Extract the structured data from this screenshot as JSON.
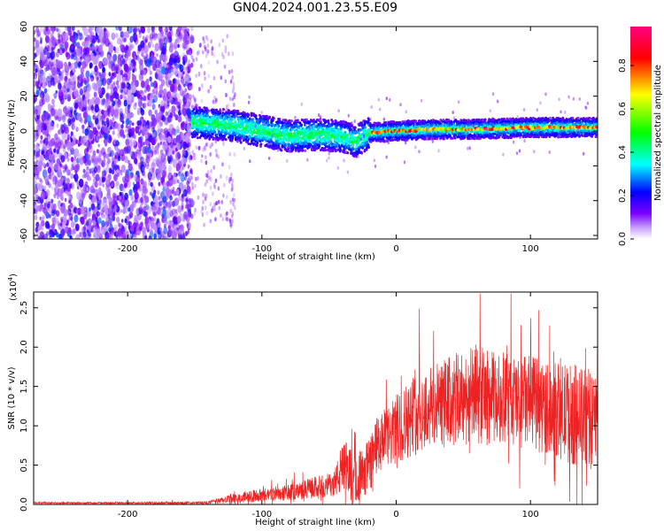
{
  "page": {
    "title": "GN04.2024.001.23.55.E09"
  },
  "chart_data": [
    {
      "type": "heatmap",
      "title": "GN04.2024.001.23.55.E09",
      "xlabel": "Height of straight line (km)",
      "ylabel": "Frequency (Hz)",
      "xlim": [
        -270,
        150
      ],
      "ylim": [
        -62,
        60
      ],
      "x_ticks": [
        -200,
        -100,
        0,
        100
      ],
      "y_ticks": [
        -60,
        -40,
        -20,
        0,
        20,
        40,
        60
      ],
      "y_tick_labels": [
        "-60",
        "-40",
        "-20",
        "0",
        "20",
        "40",
        "60"
      ],
      "x_tick_labels": [
        "-200",
        "-100",
        "0",
        "100"
      ],
      "colorbar": {
        "label": "Normalized spectral amplitude",
        "range": [
          0,
          0.98
        ],
        "ticks": [
          0.0,
          0.2,
          0.4,
          0.6,
          0.8
        ],
        "tick_labels": [
          "0.0",
          "0.2",
          "0.4",
          "0.6",
          "0.8"
        ],
        "colors": [
          "#ffffff",
          "#7b00ff",
          "#0000ff",
          "#00ffff",
          "#00ff00",
          "#ffff00",
          "#ff0000",
          "#ff0080"
        ]
      },
      "regions": [
        {
          "name": "broadband noise",
          "x_range": [
            -270,
            -152
          ],
          "freq_range": [
            -62,
            60
          ],
          "amplitude": [
            0.05,
            0.3
          ]
        },
        {
          "name": "signal band",
          "x_range": [
            -152,
            150
          ],
          "ridge_frequency": [
            [
              -150,
              5
            ],
            [
              -120,
              3
            ],
            [
              -100,
              0
            ],
            [
              -80,
              -3
            ],
            [
              -60,
              -2
            ],
            [
              -40,
              -3
            ],
            [
              -30,
              -6
            ],
            [
              -20,
              -1
            ],
            [
              0,
              0
            ],
            [
              30,
              1
            ],
            [
              60,
              1
            ],
            [
              100,
              2
            ],
            [
              150,
              2
            ]
          ],
          "peak_amplitude": [
            0.35,
            0.95
          ]
        }
      ]
    },
    {
      "type": "line",
      "xlabel": "Height of straight line (km)",
      "ylabel": "SNR (10 * v/v)",
      "y_multiplier_label": "(x10",
      "y_multiplier_exp": "4",
      "y_multiplier_close": ")",
      "xlim": [
        -270,
        150
      ],
      "ylim": [
        0,
        2.7
      ],
      "x_ticks": [
        -200,
        -100,
        0,
        100
      ],
      "x_tick_labels": [
        "-200",
        "-100",
        "0",
        "100"
      ],
      "y_ticks": [
        0.0,
        0.5,
        1.0,
        1.5,
        2.0,
        2.5
      ],
      "y_tick_labels": [
        "0.0",
        "0.5",
        "1.0",
        "1.5",
        "2.0",
        "2.5"
      ],
      "color": "#ee2222",
      "envelope_x": [
        -270,
        -200,
        -140,
        -130,
        -120,
        -110,
        -100,
        -90,
        -80,
        -70,
        -60,
        -50,
        -45,
        -40,
        -35,
        -30,
        -25,
        -20,
        -15,
        -10,
        -5,
        0,
        10,
        20,
        30,
        40,
        50,
        60,
        70,
        80,
        90,
        100,
        110,
        120,
        130,
        140,
        150
      ],
      "envelope_mean": [
        0.02,
        0.02,
        0.02,
        0.05,
        0.08,
        0.1,
        0.12,
        0.14,
        0.15,
        0.18,
        0.22,
        0.25,
        0.3,
        0.45,
        0.4,
        0.35,
        0.4,
        0.5,
        0.7,
        0.8,
        0.85,
        0.95,
        1.1,
        1.2,
        1.25,
        1.3,
        1.35,
        1.4,
        1.35,
        1.35,
        1.3,
        1.3,
        1.25,
        1.2,
        1.15,
        1.1,
        1.05
      ],
      "envelope_spread": [
        0.01,
        0.01,
        0.02,
        0.04,
        0.06,
        0.08,
        0.08,
        0.1,
        0.1,
        0.12,
        0.14,
        0.15,
        0.2,
        0.35,
        0.4,
        0.35,
        0.3,
        0.35,
        0.4,
        0.4,
        0.4,
        0.45,
        0.5,
        0.55,
        0.55,
        0.6,
        0.6,
        0.65,
        0.6,
        0.6,
        0.6,
        0.6,
        0.6,
        0.6,
        0.65,
        0.65,
        0.65
      ]
    }
  ]
}
